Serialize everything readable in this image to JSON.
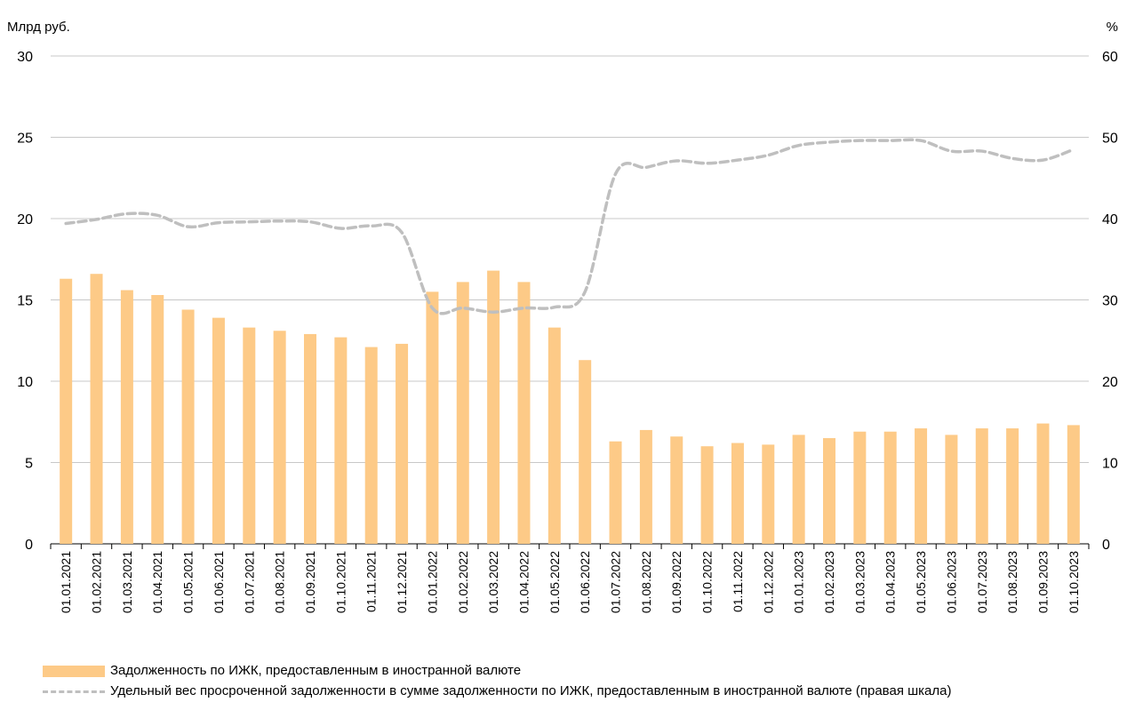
{
  "chart_data": {
    "type": "bar+line",
    "y_left_label": "Млрд руб.",
    "y_right_label": "%",
    "y_left_range": [
      0,
      30
    ],
    "y_right_range": [
      0,
      60
    ],
    "y_left_ticks": [
      "0",
      "5",
      "10",
      "15",
      "20",
      "25",
      "30"
    ],
    "y_right_ticks": [
      "0",
      "10",
      "20",
      "30",
      "40",
      "50",
      "60"
    ],
    "grid": true,
    "categories": [
      "01.01.2021",
      "01.02.2021",
      "01.03.2021",
      "01.04.2021",
      "01.05.2021",
      "01.06.2021",
      "01.07.2021",
      "01.08.2021",
      "01.09.2021",
      "01.10.2021",
      "01.11.2021",
      "01.12.2021",
      "01.01.2022",
      "01.02.2022",
      "01.03.2022",
      "01.04.2022",
      "01.05.2022",
      "01.06.2022",
      "01.07.2022",
      "01.08.2022",
      "01.09.2022",
      "01.10.2022",
      "01.11.2022",
      "01.12.2022",
      "01.01.2023",
      "01.02.2023",
      "01.03.2023",
      "01.04.2023",
      "01.05.2023",
      "01.06.2023",
      "01.07.2023",
      "01.08.2023",
      "01.09.2023",
      "01.10.2023"
    ],
    "series": [
      {
        "name": "Задолженность по ИЖК, предоставленным в иностранной валюте",
        "type": "bar",
        "axis": "left",
        "color": "#fdca87",
        "values": [
          16.3,
          16.6,
          15.6,
          15.3,
          14.4,
          13.9,
          13.3,
          13.1,
          12.9,
          12.7,
          12.1,
          12.3,
          15.5,
          16.1,
          16.8,
          16.1,
          13.3,
          11.3,
          6.3,
          7.0,
          6.6,
          6.0,
          6.2,
          6.1,
          6.7,
          6.5,
          6.9,
          6.9,
          7.1,
          6.7,
          7.1,
          7.1,
          7.4,
          7.3
        ]
      },
      {
        "name": "Удельный вес просроченной задолженности в сумме задолженности по ИЖК, предоставленным в иностранной валюте (правая шкала)",
        "type": "line",
        "axis": "right",
        "style": "dashed",
        "color": "#bfbfbf",
        "values": [
          39.4,
          39.9,
          40.6,
          40.4,
          39.0,
          39.5,
          39.6,
          39.7,
          39.6,
          38.8,
          39.1,
          38.3,
          29.0,
          29.0,
          28.5,
          29.0,
          29.1,
          31.0,
          45.5,
          46.3,
          47.1,
          46.8,
          47.2,
          47.8,
          49.0,
          49.4,
          49.6,
          49.6,
          49.6,
          48.3,
          48.3,
          47.4,
          47.2,
          48.5
        ]
      }
    ],
    "legend_position": "bottom-left"
  }
}
